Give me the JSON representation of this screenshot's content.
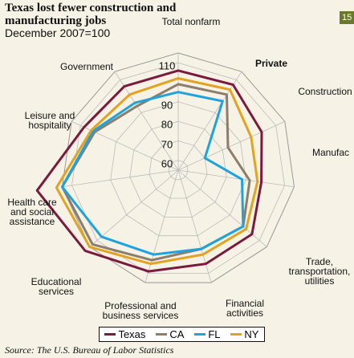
{
  "chart_data": {
    "type": "radar",
    "title": "Texas lost fewer construction and manufacturing jobs",
    "subtitle": "December 2007=100",
    "badge": "15",
    "source": "Source: The U.S. Bureau of Labor Statistics",
    "categories": [
      "Total nonfarm",
      "Private",
      "Construction",
      "Manufac",
      "Trade, transportation, utilities",
      "Financial activities",
      "Professional and business services",
      "Educational services",
      "Health care and social assistance",
      "Leisure and hospitality",
      "Government"
    ],
    "series": [
      {
        "name": "Texas",
        "color": "#7a1a3c",
        "values": [
          106,
          107,
          102,
          98,
          105,
          105,
          109,
          118,
          128,
          108,
          106
        ]
      },
      {
        "name": "CA",
        "color": "#8c7d6c",
        "values": [
          99,
          101,
          83,
          92,
          99,
          97,
          103,
          113,
          115,
          102,
          94
        ]
      },
      {
        "name": "FL",
        "color": "#1fa3dc",
        "values": [
          95,
          97,
          70,
          88,
          99,
          97,
          100,
          107,
          115,
          103,
          96
        ]
      },
      {
        "name": "NY",
        "color": "#e3a21f",
        "values": [
          102,
          104,
          96,
          96,
          101,
          100,
          105,
          115,
          118,
          104,
          101
        ]
      }
    ],
    "rlim": [
      55,
      115
    ],
    "rticks": [
      60,
      70,
      80,
      90,
      110
    ],
    "grid": true
  }
}
